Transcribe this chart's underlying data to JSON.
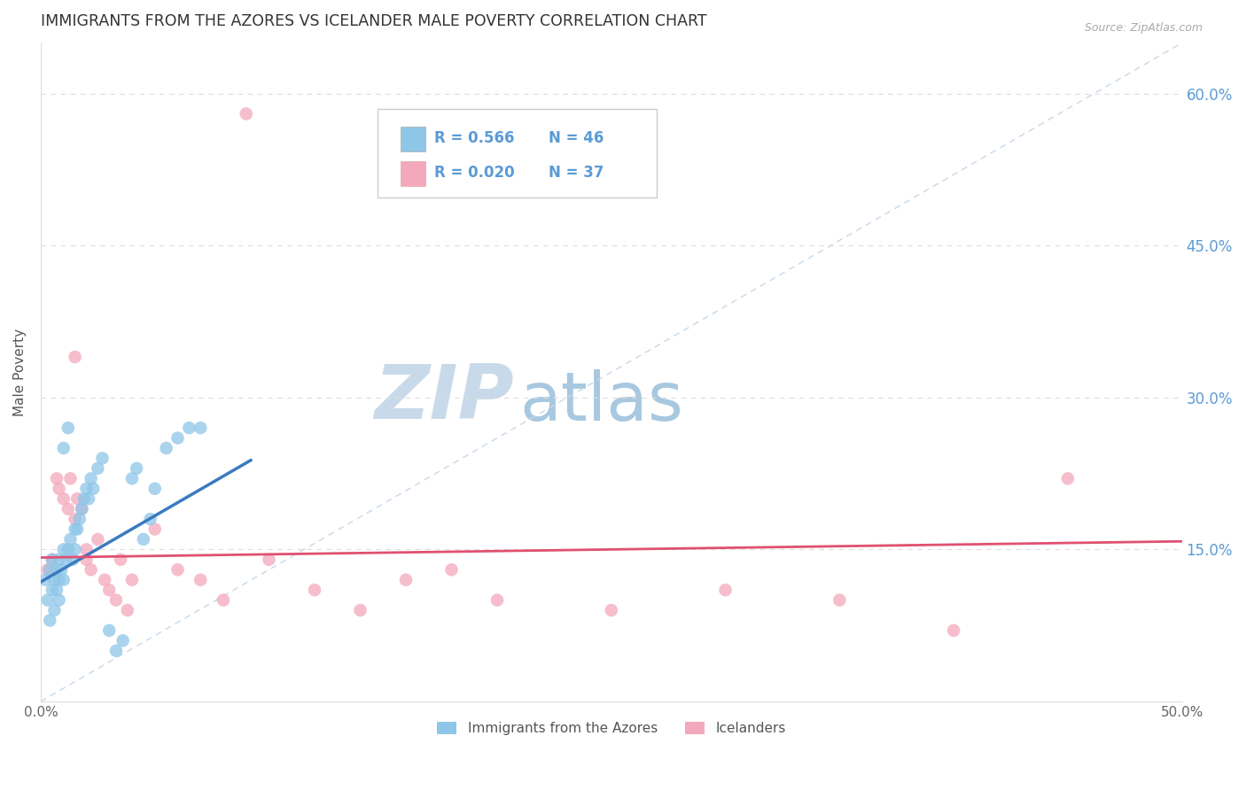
{
  "title": "IMMIGRANTS FROM THE AZORES VS ICELANDER MALE POVERTY CORRELATION CHART",
  "source": "Source: ZipAtlas.com",
  "ylabel": "Male Poverty",
  "xlim": [
    0.0,
    0.5
  ],
  "ylim": [
    0.0,
    0.65
  ],
  "legend_entry1_label": "Immigrants from the Azores",
  "legend_entry2_label": "Icelanders",
  "legend_r1": "R = 0.566",
  "legend_n1": "N = 46",
  "legend_r2": "R = 0.020",
  "legend_n2": "N = 37",
  "color_blue": "#8ec6e8",
  "color_pink": "#f4a8bc",
  "color_blue_line": "#3a7bbf",
  "color_pink_line": "#e05070",
  "color_diag_line": "#c8d8e8",
  "watermark_zip_color": "#c8daea",
  "watermark_atlas_color": "#a8c8e0",
  "blue_dots_x": [
    0.002,
    0.003,
    0.004,
    0.005,
    0.005,
    0.006,
    0.007,
    0.007,
    0.008,
    0.008,
    0.009,
    0.01,
    0.01,
    0.011,
    0.012,
    0.013,
    0.014,
    0.015,
    0.015,
    0.016,
    0.017,
    0.018,
    0.019,
    0.02,
    0.021,
    0.022,
    0.023,
    0.025,
    0.027,
    0.03,
    0.033,
    0.036,
    0.04,
    0.042,
    0.045,
    0.048,
    0.05,
    0.055,
    0.06,
    0.065,
    0.07,
    0.004,
    0.006,
    0.008,
    0.01,
    0.012
  ],
  "blue_dots_y": [
    0.12,
    0.1,
    0.13,
    0.11,
    0.14,
    0.12,
    0.13,
    0.11,
    0.14,
    0.12,
    0.13,
    0.15,
    0.12,
    0.14,
    0.15,
    0.16,
    0.14,
    0.17,
    0.15,
    0.17,
    0.18,
    0.19,
    0.2,
    0.21,
    0.2,
    0.22,
    0.21,
    0.23,
    0.24,
    0.07,
    0.05,
    0.06,
    0.22,
    0.23,
    0.16,
    0.18,
    0.21,
    0.25,
    0.26,
    0.27,
    0.27,
    0.08,
    0.09,
    0.1,
    0.25,
    0.27
  ],
  "pink_dots_x": [
    0.003,
    0.005,
    0.007,
    0.008,
    0.01,
    0.012,
    0.013,
    0.015,
    0.016,
    0.018,
    0.02,
    0.022,
    0.025,
    0.028,
    0.03,
    0.033,
    0.035,
    0.038,
    0.04,
    0.05,
    0.06,
    0.07,
    0.08,
    0.09,
    0.1,
    0.12,
    0.14,
    0.16,
    0.18,
    0.2,
    0.25,
    0.3,
    0.35,
    0.4,
    0.45,
    0.015,
    0.02
  ],
  "pink_dots_y": [
    0.13,
    0.14,
    0.22,
    0.21,
    0.2,
    0.19,
    0.22,
    0.18,
    0.2,
    0.19,
    0.14,
    0.13,
    0.16,
    0.12,
    0.11,
    0.1,
    0.14,
    0.09,
    0.12,
    0.17,
    0.13,
    0.12,
    0.1,
    0.58,
    0.14,
    0.11,
    0.09,
    0.12,
    0.13,
    0.1,
    0.09,
    0.11,
    0.1,
    0.07,
    0.22,
    0.34,
    0.15
  ],
  "blue_trend_x": [
    0.0,
    0.092
  ],
  "blue_trend_y": [
    0.118,
    0.238
  ],
  "pink_trend_x": [
    0.0,
    0.5
  ],
  "pink_trend_y": [
    0.142,
    0.158
  ]
}
